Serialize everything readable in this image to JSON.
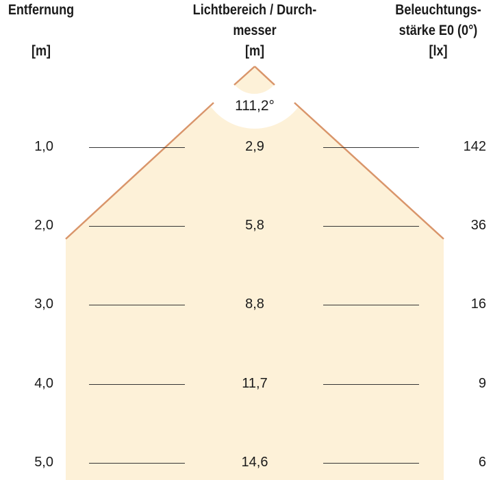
{
  "headers": {
    "distance": {
      "line1": "Entfernung",
      "unit": "[m]"
    },
    "diameter": {
      "line1": "Lichtbereich / Durch-",
      "line2": "messer",
      "unit": "[m]"
    },
    "illuminance": {
      "line1": "Beleuchtungs-",
      "line2": "stärke E0 (0°)",
      "unit": "[lx]"
    }
  },
  "beam_angle": "111,2°",
  "rows": [
    {
      "distance": "1,0",
      "diameter": "2,9",
      "illuminance": "142"
    },
    {
      "distance": "2,0",
      "diameter": "5,8",
      "illuminance": "36"
    },
    {
      "distance": "3,0",
      "diameter": "8,8",
      "illuminance": "16"
    },
    {
      "distance": "4,0",
      "diameter": "11,7",
      "illuminance": "9"
    },
    {
      "distance": "5,0",
      "diameter": "14,6",
      "illuminance": "6"
    }
  ],
  "colors": {
    "beam_fill": "#fdf1d8",
    "beam_edge": "#d9956a",
    "rule": "#333333"
  }
}
